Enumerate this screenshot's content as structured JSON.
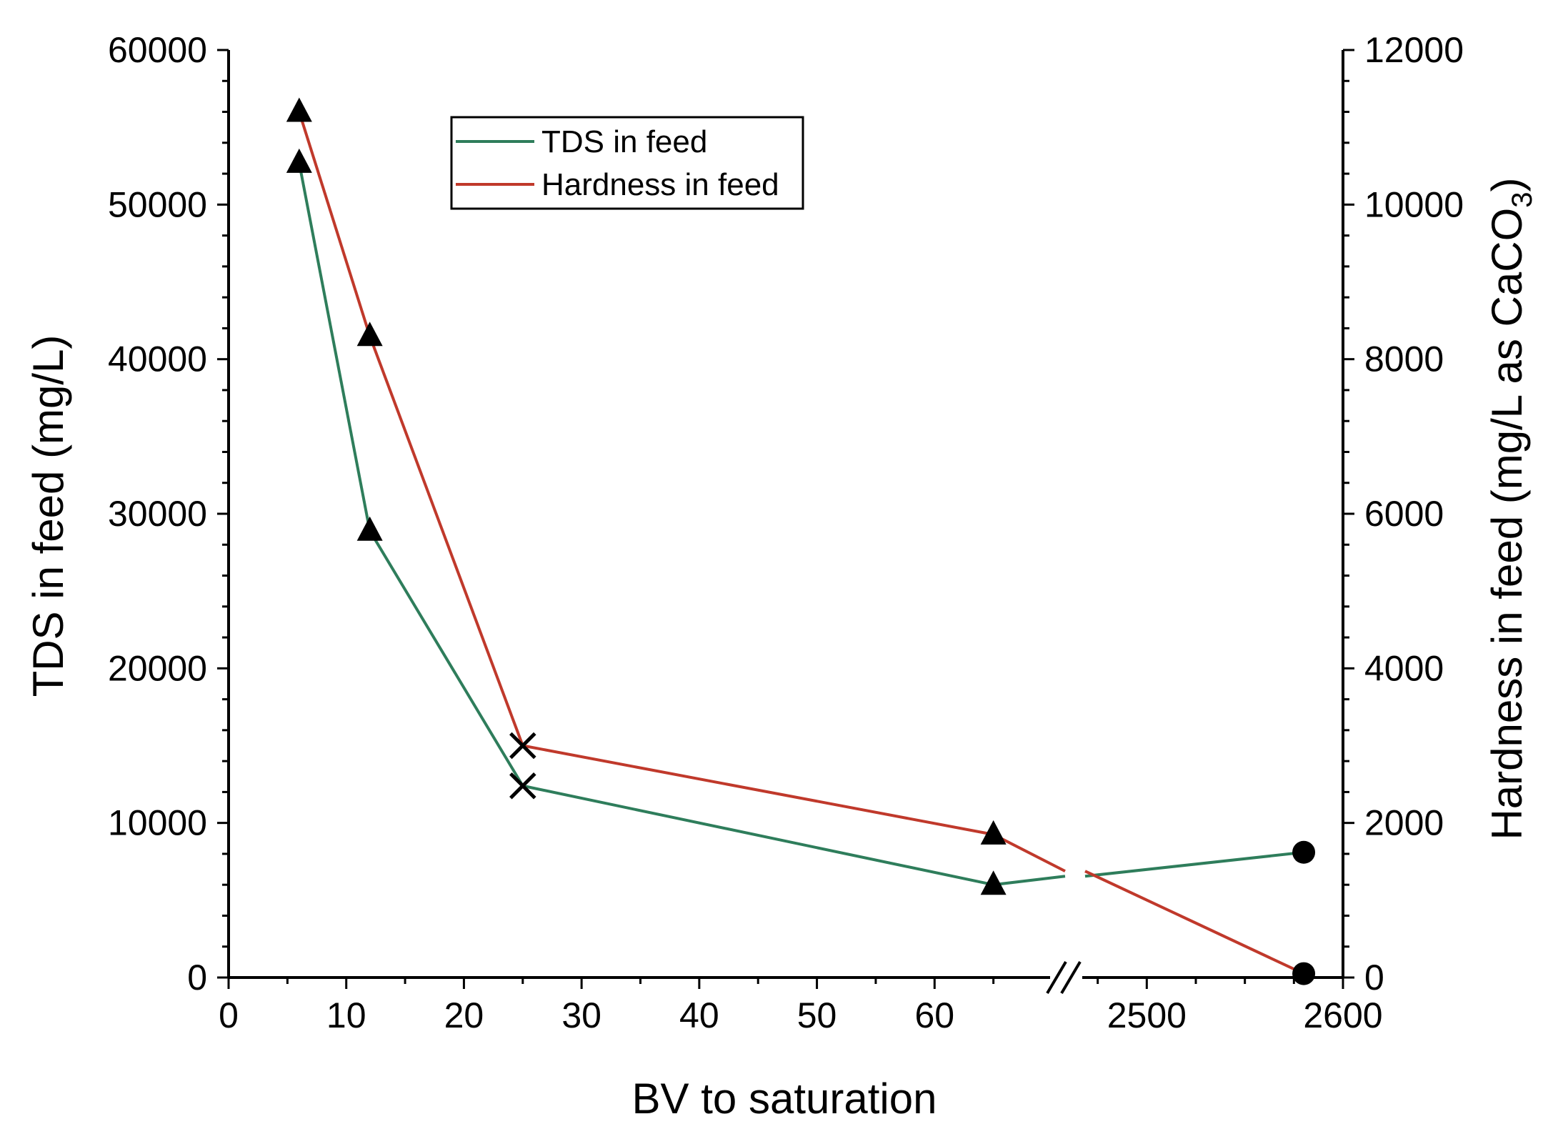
{
  "chart_data": {
    "type": "line",
    "title": "",
    "xlabel": "BV to saturation",
    "ylabel_left": "TDS in feed (mg/L)",
    "ylabel_right": {
      "prefix": "Hardness in feed (mg/L as CaCO",
      "subscript": "3",
      "suffix": ")"
    },
    "x_axis": {
      "broken": true,
      "segment_1": {
        "range": [
          0,
          70
        ],
        "major_ticks": [
          0,
          10,
          20,
          30,
          40,
          50,
          60
        ],
        "tick_labels": [
          "0",
          "10",
          "20",
          "30",
          "40",
          "50",
          "60"
        ]
      },
      "segment_2": {
        "range": [
          2450,
          2600
        ],
        "major_ticks": [
          2500,
          2600
        ],
        "tick_labels": [
          "2500",
          "2600"
        ]
      }
    },
    "y_left": {
      "range": [
        0,
        60000
      ],
      "ticks": [
        0,
        10000,
        20000,
        30000,
        40000,
        50000,
        60000
      ],
      "tick_labels": [
        "0",
        "10000",
        "20000",
        "30000",
        "40000",
        "50000",
        "60000"
      ]
    },
    "y_right": {
      "range": [
        0,
        12000
      ],
      "ticks": [
        0,
        2000,
        4000,
        6000,
        8000,
        10000,
        12000
      ],
      "tick_labels": [
        "0",
        "2000",
        "4000",
        "6000",
        "8000",
        "10000",
        "12000"
      ]
    },
    "legend": {
      "position": "top-center"
    },
    "series": [
      {
        "name": "TDS in feed",
        "axis": "left",
        "color": "#2e7d5b",
        "points": [
          {
            "x": 6,
            "y": 52700,
            "marker": "triangle"
          },
          {
            "x": 12,
            "y": 28900,
            "marker": "triangle"
          },
          {
            "x": 25,
            "y": 12400,
            "marker": "x"
          },
          {
            "x": 65,
            "y": 6000,
            "marker": "triangle"
          },
          {
            "x": 2580,
            "y": 8100,
            "marker": "circle"
          }
        ]
      },
      {
        "name": "Hardness in feed",
        "axis": "right",
        "color": "#c0392b",
        "points": [
          {
            "x": 6,
            "y": 11200,
            "marker": "triangle"
          },
          {
            "x": 12,
            "y": 8300,
            "marker": "triangle"
          },
          {
            "x": 25,
            "y": 3000,
            "marker": "x"
          },
          {
            "x": 65,
            "y": 1850,
            "marker": "triangle"
          },
          {
            "x": 2580,
            "y": 50,
            "marker": "circle"
          }
        ]
      }
    ]
  }
}
